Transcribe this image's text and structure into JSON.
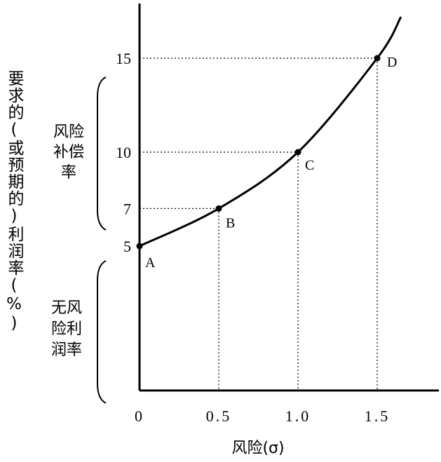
{
  "chart_data": {
    "type": "line",
    "title": "",
    "xlabel": "风险(σ)",
    "ylabel": "要求的(或预期的)利润率(%)",
    "xlim": [
      0,
      1.8
    ],
    "ylim": [
      0,
      17.5
    ],
    "x_ticks": [
      {
        "value": 0,
        "label": "0"
      },
      {
        "value": 0.5,
        "label": "0.5"
      },
      {
        "value": 1.0,
        "label": "1.0"
      },
      {
        "value": 1.5,
        "label": "1.5"
      }
    ],
    "y_ticks": [
      {
        "value": 5,
        "label": "5"
      },
      {
        "value": 7,
        "label": "7"
      },
      {
        "value": 10,
        "label": "10"
      },
      {
        "value": 15,
        "label": "15"
      }
    ],
    "points": [
      {
        "label": "A",
        "x": 0,
        "y": 5
      },
      {
        "label": "B",
        "x": 0.5,
        "y": 7
      },
      {
        "label": "C",
        "x": 1.0,
        "y": 10
      },
      {
        "label": "D",
        "x": 1.5,
        "y": 15
      }
    ],
    "curve_extends_to": {
      "x": 1.65,
      "y": 17.2
    },
    "grid": false,
    "annotations": {
      "risk_premium": [
        "风险",
        "补偿",
        "率"
      ],
      "risk_free": [
        "无风",
        "险利",
        "润率"
      ]
    }
  }
}
